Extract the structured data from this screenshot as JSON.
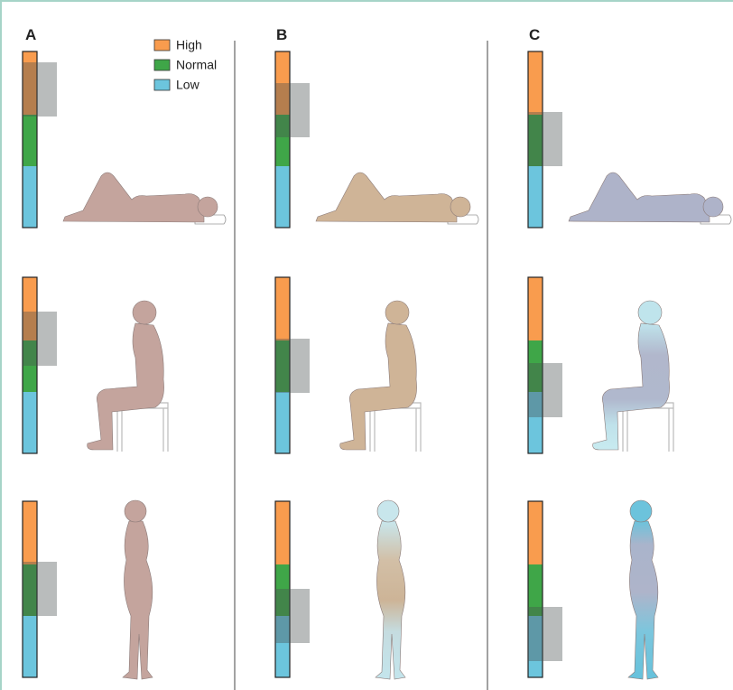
{
  "panels": [
    {
      "label": "A"
    },
    {
      "label": "B"
    },
    {
      "label": "C"
    }
  ],
  "legend": [
    "High",
    "Normal",
    "Low"
  ]
}
